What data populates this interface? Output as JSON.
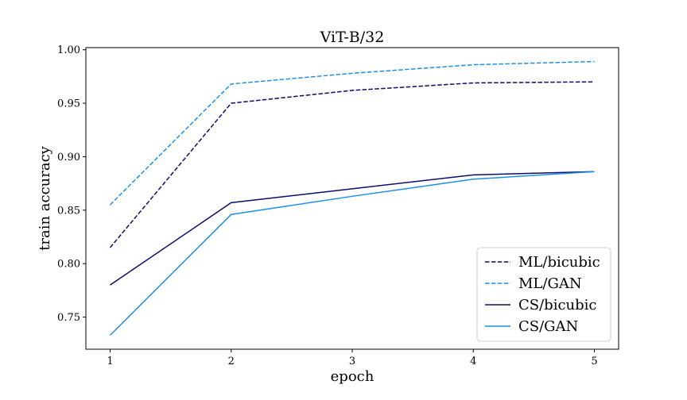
{
  "chart_data": {
    "type": "line",
    "title": "ViT-B/32",
    "xlabel": "epoch",
    "ylabel": "train accuracy",
    "x": [
      1,
      2,
      3,
      4,
      5
    ],
    "xticks": [
      "1",
      "2",
      "3",
      "4",
      "5"
    ],
    "yticks": [
      "0.75",
      "0.80",
      "0.85",
      "0.90",
      "0.95",
      "1.00"
    ],
    "xlim": [
      0.8,
      5.2
    ],
    "ylim": [
      0.72,
      1.002
    ],
    "grid": false,
    "legend_position": "lower-right",
    "series": [
      {
        "name": "ML/bicubic",
        "values": [
          0.815,
          0.95,
          0.962,
          0.969,
          0.97
        ],
        "color": "#0d0d6b",
        "style": "dashed"
      },
      {
        "name": "ML/GAN",
        "values": [
          0.855,
          0.968,
          0.978,
          0.986,
          0.989
        ],
        "color": "#1f8fe6",
        "style": "dashed"
      },
      {
        "name": "CS/bicubic",
        "values": [
          0.78,
          0.857,
          0.87,
          0.883,
          0.886
        ],
        "color": "#0d0d6b",
        "style": "solid"
      },
      {
        "name": "CS/GAN",
        "values": [
          0.733,
          0.846,
          0.863,
          0.879,
          0.886
        ],
        "color": "#1f8fe6",
        "style": "solid"
      }
    ]
  }
}
